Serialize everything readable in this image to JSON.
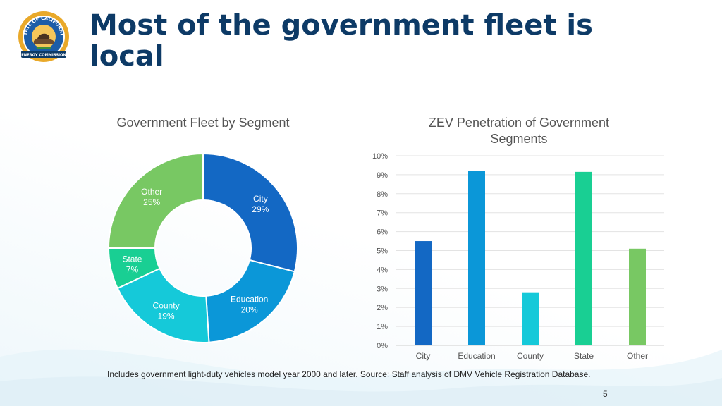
{
  "slide": {
    "title": "Most of the government fleet is local",
    "logo_text_top": "STATE OF CALIFORNIA",
    "logo_text_bottom": "ENERGY COMMISSION",
    "footnote": "Includes government light-duty vehicles model year 2000 and later. Source: Staff analysis of DMV Vehicle Registration Database.",
    "page_number": "5"
  },
  "colors": {
    "title": "#0d3a66",
    "city": "#1368c4",
    "education": "#0b97d8",
    "county": "#15c9d9",
    "state": "#19cf93",
    "other": "#78c863"
  },
  "chart_data": [
    {
      "type": "pie",
      "title": "Government Fleet by Segment",
      "donut": true,
      "categories": [
        "City",
        "Education",
        "County",
        "State",
        "Other"
      ],
      "values": [
        29,
        20,
        19,
        7,
        25
      ],
      "labels": [
        "29%",
        "20%",
        "19%",
        "7%",
        "25%"
      ]
    },
    {
      "type": "bar",
      "title": "ZEV Penetration of Government Segments",
      "categories": [
        "City",
        "Education",
        "County",
        "State",
        "Other"
      ],
      "values": [
        5.5,
        9.2,
        2.8,
        9.15,
        5.1
      ],
      "ylim": [
        0,
        10
      ],
      "yticks": [
        "0%",
        "1%",
        "2%",
        "3%",
        "4%",
        "5%",
        "6%",
        "7%",
        "8%",
        "9%",
        "10%"
      ],
      "xlabel": "",
      "ylabel": "",
      "grid": true
    }
  ]
}
